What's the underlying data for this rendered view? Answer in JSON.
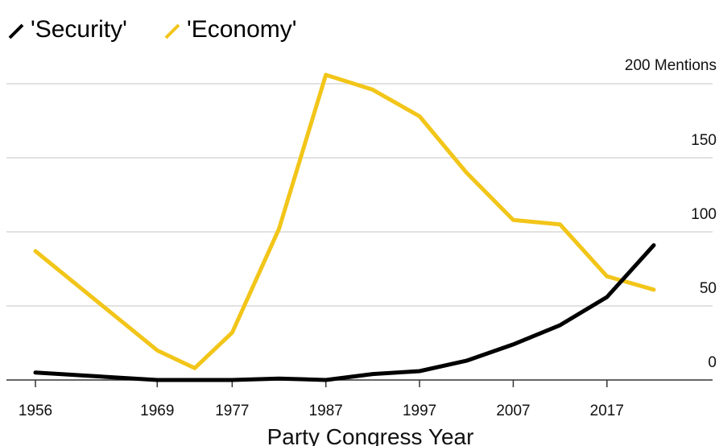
{
  "chart_data": {
    "type": "line",
    "title": "",
    "xlabel": "Party Congress Year",
    "ylabel": "",
    "y_unit_label": "200 Mentions",
    "x": [
      1956,
      1969,
      1973,
      1977,
      1982,
      1987,
      1992,
      1997,
      2002,
      2007,
      2012,
      2017,
      2022
    ],
    "x_ticks": [
      "1956",
      "1969",
      "1977",
      "1987",
      "1997",
      "2007",
      "2017"
    ],
    "y_ticks": [
      "0",
      "50",
      "100",
      "150"
    ],
    "xlim": [
      1956,
      2022
    ],
    "ylim": [
      0,
      200
    ],
    "grid": true,
    "legend_position": "top-left",
    "series": [
      {
        "name": "'Security'",
        "color": "#000000",
        "values": [
          5,
          0,
          0,
          0,
          1,
          0,
          4,
          6,
          13,
          24,
          37,
          56,
          91
        ]
      },
      {
        "name": "'Economy'",
        "color": "#f2c519",
        "values": [
          87,
          20,
          8,
          32,
          102,
          206,
          196,
          178,
          140,
          108,
          105,
          70,
          61
        ]
      }
    ]
  }
}
